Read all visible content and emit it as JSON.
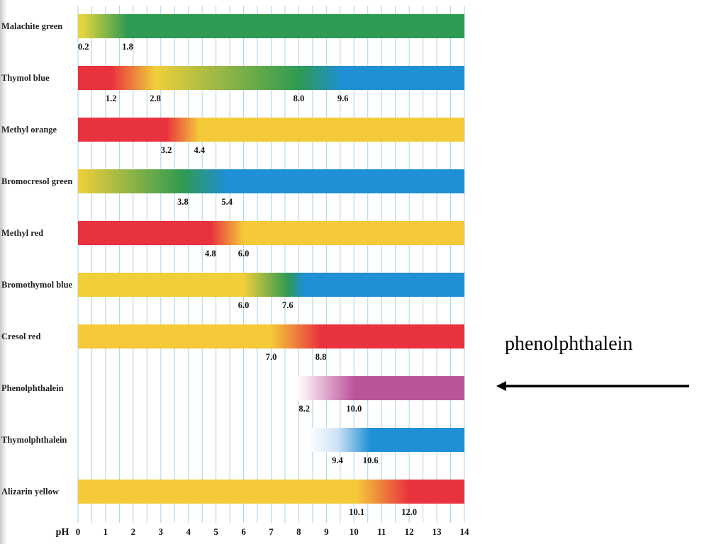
{
  "callout": {
    "text": "phenolphthalein"
  },
  "chart_data": {
    "type": "bar",
    "xlabel": "pH",
    "xlim": [
      0,
      14
    ],
    "x_ticks": [
      "0",
      "1",
      "2",
      "3",
      "4",
      "5",
      "6",
      "7",
      "8",
      "9",
      "10",
      "11",
      "12",
      "13",
      "14"
    ],
    "grid": "vertical lines at each half pH unit",
    "highlighted_indicator": "Phenolphthalein",
    "indicators": [
      {
        "name": "Malachite green",
        "start": 0,
        "end": 14,
        "labels": [
          "0.2",
          "1.8"
        ],
        "transition_ph": [
          0.2,
          1.8
        ],
        "stops": [
          [
            0,
            "#dfd33f"
          ],
          [
            0.2,
            "#dfd33f"
          ],
          [
            1.8,
            "#2f9a52"
          ],
          [
            14,
            "#2f9a52"
          ]
        ]
      },
      {
        "name": "Thymol blue",
        "start": 0,
        "end": 14,
        "labels": [
          "1.2",
          "2.8",
          "8.0",
          "9.6"
        ],
        "transition_ph": [
          1.2,
          2.8,
          8.0,
          9.6
        ],
        "stops": [
          [
            0,
            "#e8323e"
          ],
          [
            1.2,
            "#e8323e"
          ],
          [
            2.8,
            "#f0cf3a"
          ],
          [
            8.0,
            "#2f9a52"
          ],
          [
            9.6,
            "#1f8fd6"
          ],
          [
            14,
            "#1f8fd6"
          ]
        ]
      },
      {
        "name": "Methyl orange",
        "start": 0,
        "end": 14,
        "labels": [
          "3.2",
          "4.4"
        ],
        "transition_ph": [
          3.2,
          4.4
        ],
        "stops": [
          [
            0,
            "#e8323e"
          ],
          [
            3.2,
            "#e8323e"
          ],
          [
            4.4,
            "#f4c93a"
          ],
          [
            14,
            "#f4c93a"
          ]
        ]
      },
      {
        "name": "Bromocresol green",
        "start": 0,
        "end": 14,
        "labels": [
          "3.8",
          "5.4"
        ],
        "transition_ph": [
          3.8,
          5.4
        ],
        "stops": [
          [
            0,
            "#f0cf3a"
          ],
          [
            3.8,
            "#2f9a52"
          ],
          [
            5.4,
            "#1f8fd6"
          ],
          [
            14,
            "#1f8fd6"
          ]
        ]
      },
      {
        "name": "Methyl red",
        "start": 0,
        "end": 14,
        "labels": [
          "4.8",
          "6.0"
        ],
        "transition_ph": [
          4.8,
          6.0
        ],
        "stops": [
          [
            0,
            "#e8323e"
          ],
          [
            4.8,
            "#e8323e"
          ],
          [
            6.0,
            "#f4c93a"
          ],
          [
            14,
            "#f4c93a"
          ]
        ]
      },
      {
        "name": "Bromothymol blue",
        "start": 0,
        "end": 14,
        "labels": [
          "6.0",
          "7.6"
        ],
        "transition_ph": [
          6.0,
          7.6
        ],
        "stops": [
          [
            0,
            "#f0cf3a"
          ],
          [
            6.0,
            "#f0cf3a"
          ],
          [
            7.6,
            "#2f9a52"
          ],
          [
            8.2,
            "#1f8fd6"
          ],
          [
            14,
            "#1f8fd6"
          ]
        ]
      },
      {
        "name": "Cresol red",
        "start": 0,
        "end": 14,
        "labels": [
          "7.0",
          "8.8"
        ],
        "transition_ph": [
          7.0,
          8.8
        ],
        "stops": [
          [
            0,
            "#f4c93a"
          ],
          [
            7.0,
            "#f4c93a"
          ],
          [
            8.8,
            "#e8323e"
          ],
          [
            14,
            "#e8323e"
          ]
        ]
      },
      {
        "name": "Phenolphthalein",
        "start": 7.9,
        "end": 14,
        "labels": [
          "8.2",
          "10.0"
        ],
        "transition_ph": [
          8.2,
          10.0
        ],
        "stops": [
          [
            7.9,
            "#ffffff"
          ],
          [
            8.2,
            "#faeaf5"
          ],
          [
            10.0,
            "#bb5599"
          ],
          [
            14,
            "#bb5599"
          ]
        ]
      },
      {
        "name": "Thymolphthalein",
        "start": 8.3,
        "end": 14,
        "labels": [
          "9.4",
          "10.6"
        ],
        "transition_ph": [
          9.4,
          10.6
        ],
        "stops": [
          [
            8.3,
            "#ffffff"
          ],
          [
            9.4,
            "#cfe3f7"
          ],
          [
            10.6,
            "#1f8fd6"
          ],
          [
            14,
            "#1f8fd6"
          ]
        ]
      },
      {
        "name": "Alizarin yellow",
        "start": 0,
        "end": 14,
        "labels": [
          "10.1",
          "12.0"
        ],
        "transition_ph": [
          10.1,
          12.0
        ],
        "stops": [
          [
            0,
            "#f4c93a"
          ],
          [
            10.1,
            "#f4c93a"
          ],
          [
            12.0,
            "#e8323e"
          ],
          [
            14,
            "#e8323e"
          ]
        ]
      }
    ]
  }
}
